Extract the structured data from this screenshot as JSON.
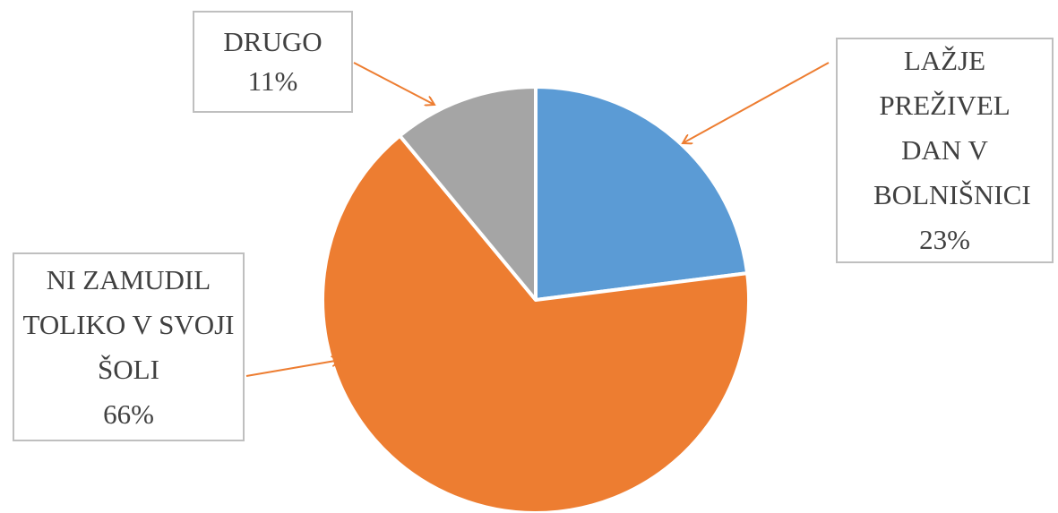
{
  "chart_data": {
    "type": "pie",
    "categories": [
      "LAŽJE PREŽIVEL DAN V BOLNIŠNICI",
      "NI ZAMUDIL TOLIKO V SVOJI ŠOLI",
      "DRUGO"
    ],
    "values": [
      23,
      66,
      11
    ],
    "value_labels": [
      "23%",
      "66%",
      "11%"
    ],
    "colors": [
      "#5b9bd5",
      "#ed7d31",
      "#a5a5a5"
    ]
  }
}
